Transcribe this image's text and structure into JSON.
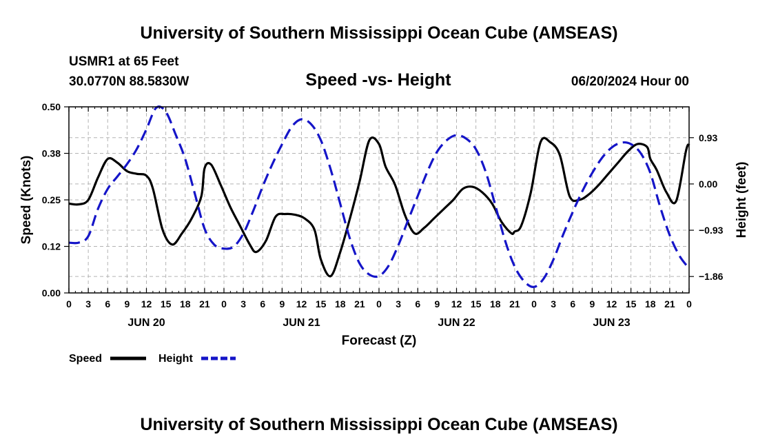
{
  "page": {
    "title_top": "University of Southern Mississippi Ocean Cube (AMSEAS)",
    "title_bottom": "University of Southern Mississippi Ocean Cube (AMSEAS)",
    "station": "USMR1 at 65 Feet",
    "coordinates": "30.0770N  88.5830W",
    "date": "06/20/2024 Hour 00"
  },
  "chart_data": {
    "type": "line",
    "title": "Speed -vs- Height",
    "xlabel": "Forecast (Z)",
    "ylabel": "Speed (Knots)",
    "y2label": "Height (feet)",
    "xlim": [
      0,
      96
    ],
    "ylim": [
      0,
      0.5
    ],
    "y2lim": [
      -2.19,
      1.55
    ],
    "x_tick_labels": [
      "0",
      "3",
      "6",
      "9",
      "12",
      "15",
      "18",
      "21",
      "0",
      "3",
      "6",
      "9",
      "12",
      "15",
      "18",
      "21",
      "0",
      "3",
      "6",
      "9",
      "12",
      "15",
      "18",
      "21",
      "0",
      "3",
      "6",
      "9",
      "12",
      "15",
      "18",
      "21",
      "0"
    ],
    "day_labels": [
      {
        "label": "JUN 20",
        "x": 12
      },
      {
        "label": "JUN 21",
        "x": 36
      },
      {
        "label": "JUN 22",
        "x": 60
      },
      {
        "label": "JUN 23",
        "x": 84
      }
    ],
    "y_ticks": [
      {
        "value": 0,
        "label": "0.00"
      },
      {
        "value": 0.125,
        "label": "0.12"
      },
      {
        "value": 0.25,
        "label": "0.25"
      },
      {
        "value": 0.375,
        "label": "0.38"
      },
      {
        "value": 0.5,
        "label": "0.50"
      }
    ],
    "y2_ticks": [
      {
        "value": 0.93,
        "label": "0.93"
      },
      {
        "value": 0,
        "label": "0.00"
      },
      {
        "value": -0.93,
        "label": "−0.93"
      },
      {
        "value": -1.86,
        "label": "−1.86"
      }
    ],
    "series": [
      {
        "name": "Speed",
        "axis": "left",
        "color": "#000000",
        "dash": "solid",
        "x": [
          0,
          1.5,
          3,
          4.5,
          6,
          7.5,
          9,
          10.5,
          12,
          13,
          14.5,
          16,
          17.5,
          19,
          20.5,
          21,
          22,
          23.5,
          25,
          26.5,
          28,
          29,
          30.5,
          32,
          33.5,
          35,
          36.5,
          38,
          39,
          40.5,
          42,
          43.5,
          45,
          46.5,
          48,
          49,
          50.5,
          52,
          53.5,
          55,
          56.5,
          58,
          59.5,
          61,
          62.5,
          64,
          65.5,
          67,
          68.5,
          69,
          70,
          71.5,
          73,
          74.5,
          76,
          77.5,
          79,
          80.5,
          82,
          83.5,
          85,
          86.5,
          88,
          89.5,
          90,
          91,
          92.5,
          94,
          95.5,
          96
        ],
        "y": [
          0.24,
          0.238,
          0.25,
          0.31,
          0.36,
          0.35,
          0.327,
          0.32,
          0.315,
          0.28,
          0.17,
          0.13,
          0.16,
          0.2,
          0.26,
          0.335,
          0.345,
          0.29,
          0.23,
          0.18,
          0.13,
          0.11,
          0.14,
          0.205,
          0.212,
          0.21,
          0.2,
          0.17,
          0.09,
          0.045,
          0.11,
          0.2,
          0.3,
          0.41,
          0.4,
          0.34,
          0.29,
          0.21,
          0.16,
          0.175,
          0.2,
          0.225,
          0.25,
          0.28,
          0.285,
          0.27,
          0.24,
          0.19,
          0.16,
          0.165,
          0.18,
          0.27,
          0.405,
          0.405,
          0.37,
          0.26,
          0.25,
          0.265,
          0.29,
          0.32,
          0.35,
          0.38,
          0.4,
          0.392,
          0.36,
          0.33,
          0.27,
          0.247,
          0.38,
          0.4
        ]
      },
      {
        "name": "Height",
        "axis": "right",
        "color": "#1515c8",
        "dash": "dashed",
        "x": [
          0,
          1.5,
          3,
          4.5,
          6,
          7.5,
          9,
          10.5,
          12,
          13.5,
          15,
          16.5,
          18,
          19.5,
          21,
          22.5,
          24,
          25.5,
          27,
          28.5,
          30,
          31.5,
          33,
          34.5,
          36,
          37.5,
          39,
          40.5,
          42,
          43.5,
          45,
          46.5,
          48,
          49.5,
          51,
          52.5,
          54,
          55.5,
          57,
          58.5,
          60,
          61.5,
          63,
          64.5,
          66,
          67.5,
          69,
          70.5,
          72,
          73.5,
          75,
          76.5,
          78,
          79.5,
          81,
          82.5,
          84,
          85.5,
          87,
          88.5,
          90,
          91.5,
          93,
          94.5,
          96
        ],
        "y": [
          -1.18,
          -1.18,
          -1.05,
          -0.5,
          -0.1,
          0.15,
          0.4,
          0.7,
          1.1,
          1.53,
          1.45,
          1.0,
          0.5,
          -0.2,
          -0.9,
          -1.22,
          -1.3,
          -1.26,
          -1.0,
          -0.55,
          -0.05,
          0.4,
          0.8,
          1.15,
          1.3,
          1.2,
          0.88,
          0.3,
          -0.4,
          -1.1,
          -1.6,
          -1.82,
          -1.85,
          -1.64,
          -1.23,
          -0.73,
          -0.24,
          0.25,
          0.65,
          0.88,
          0.98,
          0.91,
          0.7,
          0.25,
          -0.43,
          -1.13,
          -1.66,
          -1.96,
          -2.07,
          -1.9,
          -1.52,
          -1.02,
          -0.56,
          -0.14,
          0.22,
          0.52,
          0.73,
          0.83,
          0.8,
          0.62,
          0.22,
          -0.45,
          -1.03,
          -1.44,
          -1.7
        ]
      }
    ],
    "legend": [
      {
        "label": "Speed",
        "color": "#000000",
        "dash": "solid"
      },
      {
        "label": "Height",
        "color": "#1515c8",
        "dash": "dashed"
      }
    ]
  }
}
